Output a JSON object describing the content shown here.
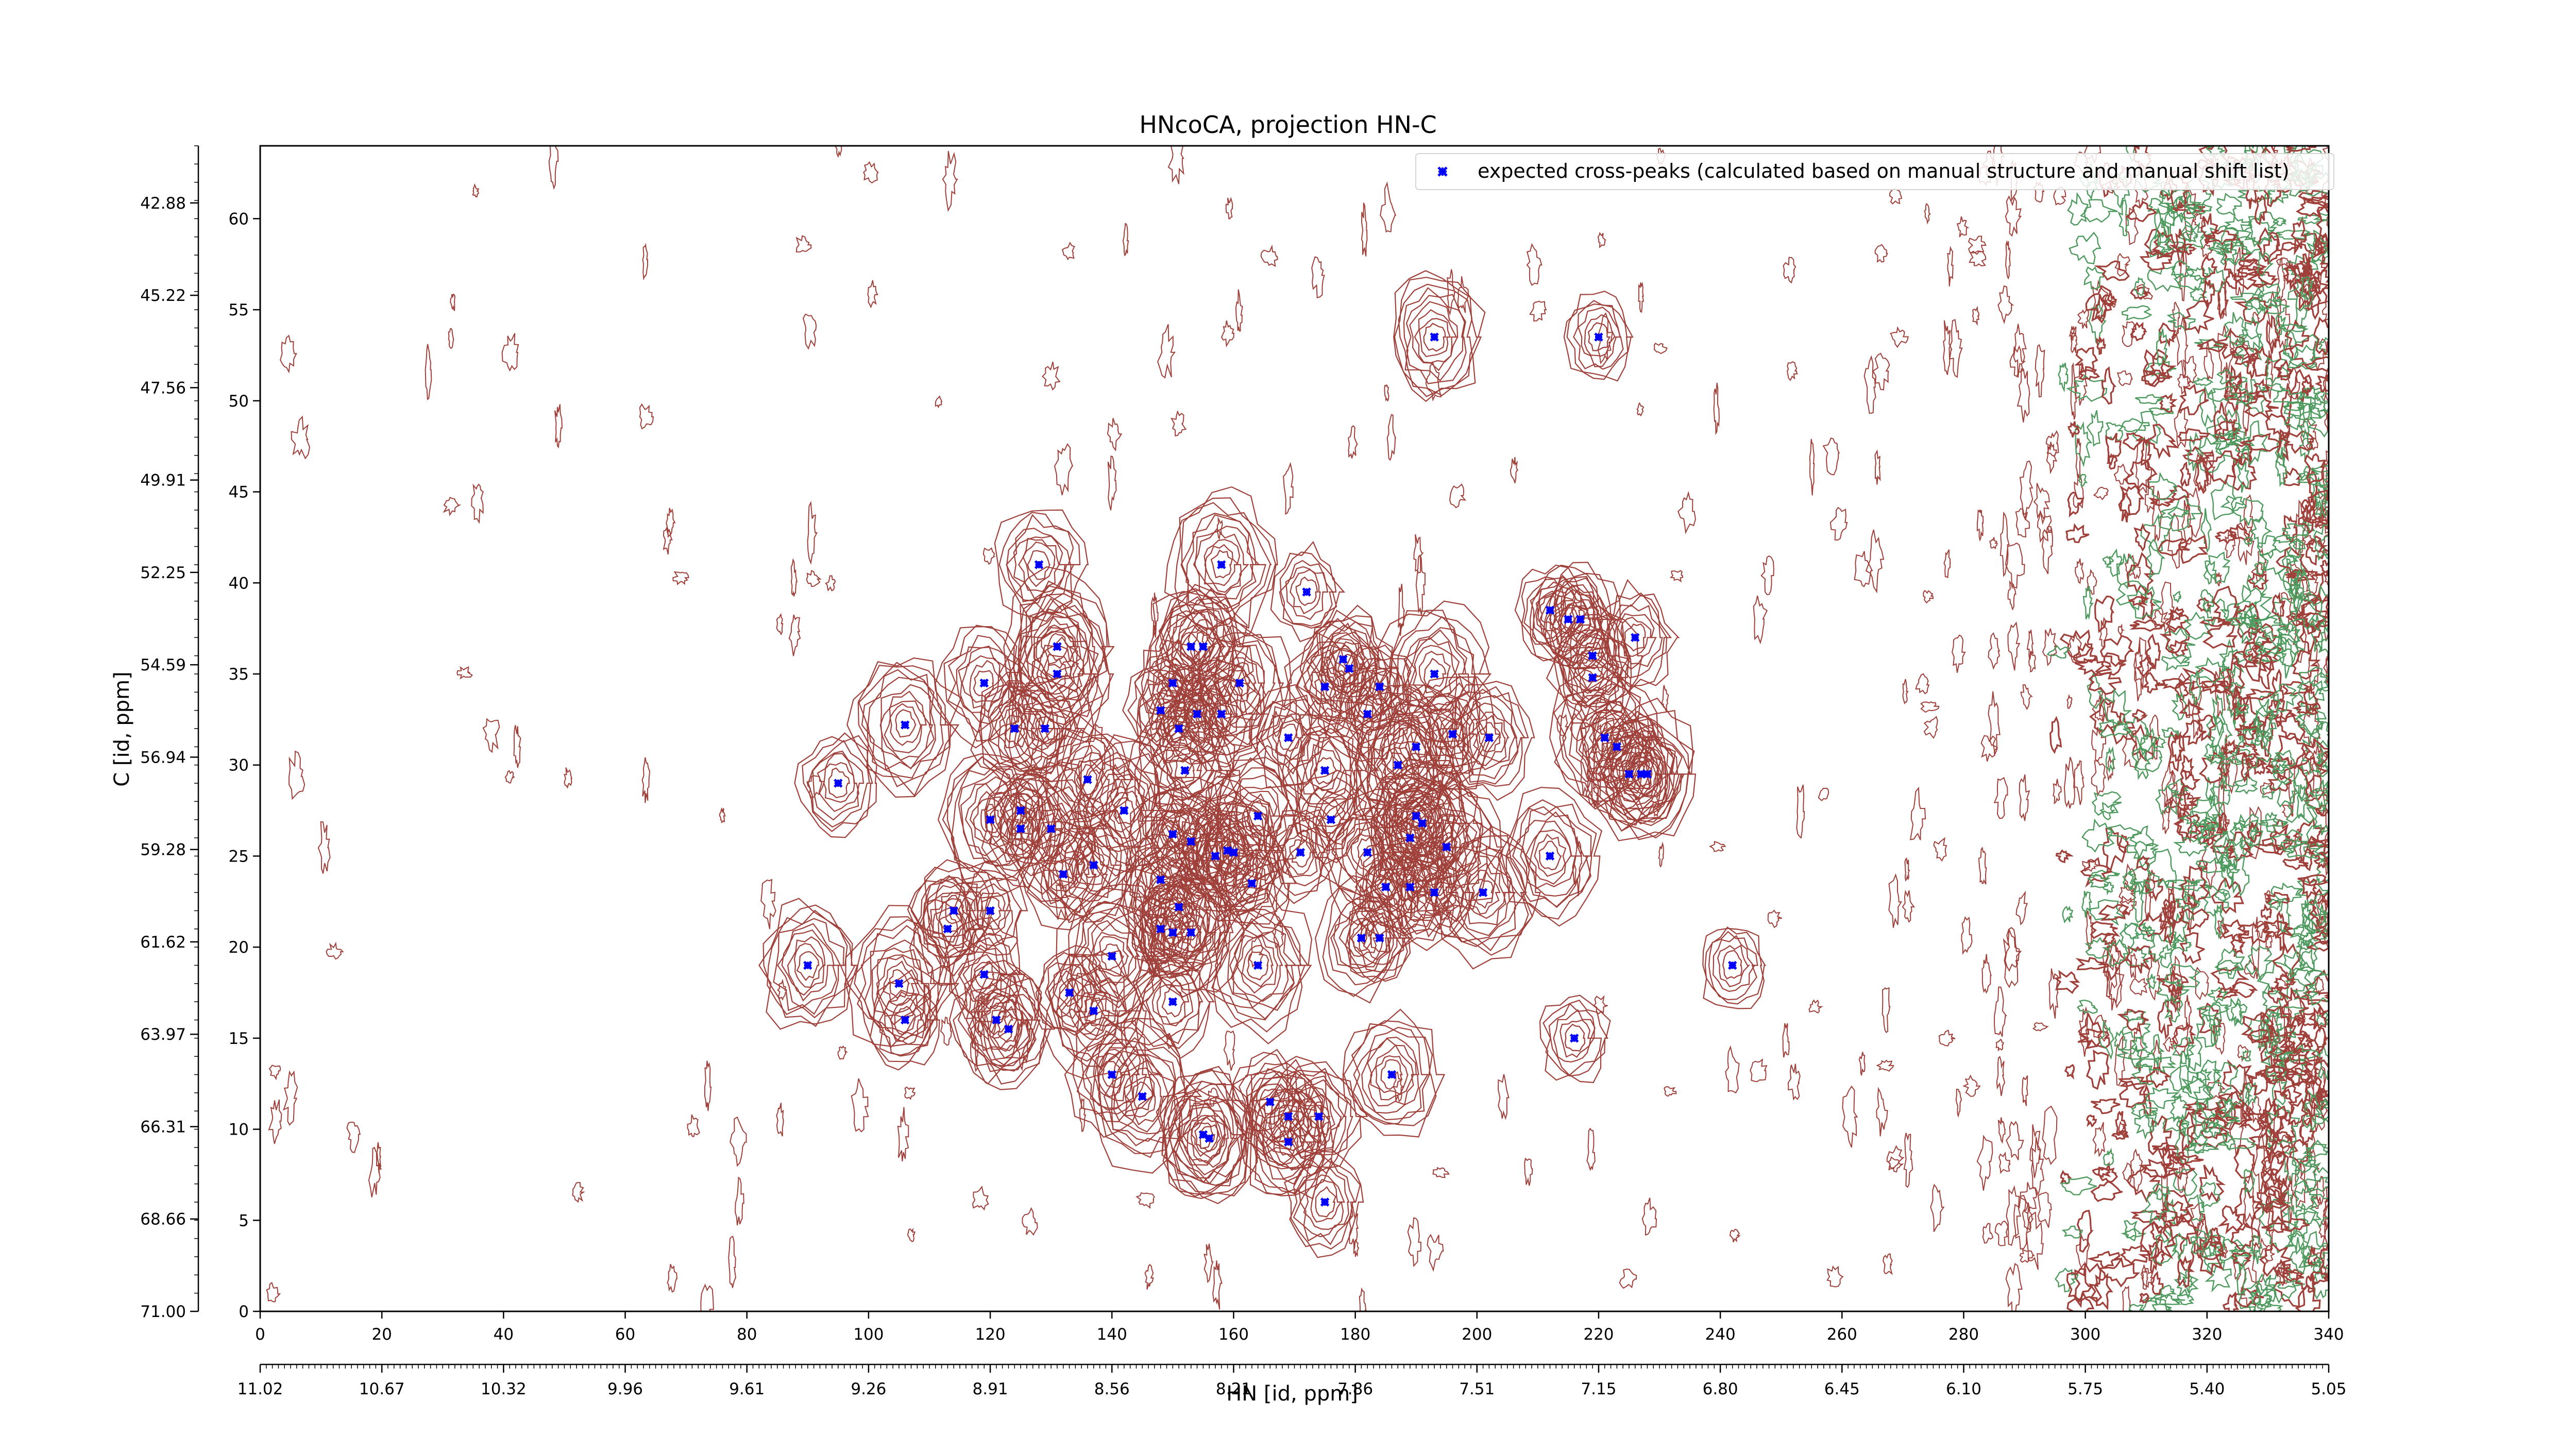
{
  "chart_data": {
    "type": "scatter",
    "title": "HNcoCA, projection HN-C",
    "xlabel": "HN [id, ppm]",
    "ylabel": "C [id, ppm]",
    "x_index_range": [
      0,
      340
    ],
    "y_index_range": [
      0,
      64
    ],
    "x_index_ticks": [
      "0",
      "20",
      "40",
      "60",
      "80",
      "100",
      "120",
      "140",
      "160",
      "180",
      "200",
      "220",
      "240",
      "260",
      "280",
      "300",
      "320",
      "340"
    ],
    "y_index_ticks": [
      "0",
      "5",
      "10",
      "15",
      "20",
      "25",
      "30",
      "35",
      "40",
      "45",
      "50",
      "55",
      "60"
    ],
    "x_ppm_ticks": [
      "11.02",
      "10.67",
      "10.32",
      "9.96",
      "9.61",
      "9.26",
      "8.91",
      "8.56",
      "8.21",
      "7.86",
      "7.51",
      "7.15",
      "6.80",
      "6.45",
      "6.10",
      "5.75",
      "5.40",
      "5.05"
    ],
    "y_ppm_ticks": [
      "71.00",
      "68.66",
      "66.31",
      "63.97",
      "61.62",
      "59.28",
      "56.94",
      "54.59",
      "52.25",
      "49.91",
      "47.56",
      "45.22",
      "42.88"
    ],
    "legend": {
      "label": "expected cross-peaks (calculated based on manual structure and manual shift list)",
      "position": "top-right"
    },
    "series": [
      {
        "name": "expected cross-peaks (calculated based on manual structure and manual shift list)",
        "marker": "x",
        "color": "#0000ff",
        "points": [
          [
            193,
            53.5
          ],
          [
            220,
            53.5
          ],
          [
            128,
            41
          ],
          [
            158,
            41
          ],
          [
            172,
            39.5
          ],
          [
            212,
            38.5
          ],
          [
            215,
            38
          ],
          [
            217,
            38
          ],
          [
            226,
            37
          ],
          [
            131,
            36.5
          ],
          [
            153,
            36.5
          ],
          [
            155,
            36.5
          ],
          [
            219,
            36
          ],
          [
            178,
            35.8
          ],
          [
            179,
            35.3
          ],
          [
            131,
            35
          ],
          [
            193,
            35
          ],
          [
            119,
            34.5
          ],
          [
            150,
            34.5
          ],
          [
            161,
            34.5
          ],
          [
            175,
            34.3
          ],
          [
            184,
            34.3
          ],
          [
            219,
            34.8
          ],
          [
            148,
            33
          ],
          [
            154,
            32.8
          ],
          [
            158,
            32.8
          ],
          [
            182,
            32.8
          ],
          [
            106,
            32.2
          ],
          [
            124,
            32
          ],
          [
            129,
            32
          ],
          [
            151,
            32
          ],
          [
            169,
            31.5
          ],
          [
            196,
            31.7
          ],
          [
            202,
            31.5
          ],
          [
            221,
            31.5
          ],
          [
            223,
            31
          ],
          [
            190,
            31
          ],
          [
            187,
            30
          ],
          [
            95,
            29
          ],
          [
            136,
            29.2
          ],
          [
            152,
            29.7
          ],
          [
            175,
            29.7
          ],
          [
            225,
            29.5
          ],
          [
            227,
            29.5
          ],
          [
            228,
            29.5
          ],
          [
            125,
            27.5
          ],
          [
            120,
            27
          ],
          [
            125,
            26.5
          ],
          [
            142,
            27.5
          ],
          [
            164,
            27.2
          ],
          [
            176,
            27
          ],
          [
            190,
            27.2
          ],
          [
            191,
            26.8
          ],
          [
            130,
            26.5
          ],
          [
            150,
            26.2
          ],
          [
            153,
            25.8
          ],
          [
            159,
            25.3
          ],
          [
            195,
            25.5
          ],
          [
            171,
            25.2
          ],
          [
            182,
            25.2
          ],
          [
            189,
            26
          ],
          [
            157,
            25
          ],
          [
            160,
            25.2
          ],
          [
            212,
            25
          ],
          [
            137,
            24.5
          ],
          [
            132,
            24
          ],
          [
            148,
            23.7
          ],
          [
            193,
            23
          ],
          [
            163,
            23.5
          ],
          [
            185,
            23.3
          ],
          [
            189,
            23.3
          ],
          [
            201,
            23
          ],
          [
            151,
            22.2
          ],
          [
            114,
            22
          ],
          [
            120,
            22
          ],
          [
            113,
            21
          ],
          [
            148,
            21
          ],
          [
            153,
            20.8
          ],
          [
            150,
            20.8
          ],
          [
            164,
            19
          ],
          [
            181,
            20.5
          ],
          [
            184,
            20.5
          ],
          [
            119,
            18.5
          ],
          [
            140,
            19.5
          ],
          [
            90,
            19
          ],
          [
            105,
            18
          ],
          [
            242,
            19
          ],
          [
            133,
            17.5
          ],
          [
            121,
            16
          ],
          [
            123,
            15.5
          ],
          [
            137,
            16.5
          ],
          [
            106,
            16
          ],
          [
            150,
            17
          ],
          [
            216,
            15
          ],
          [
            140,
            13
          ],
          [
            186,
            13
          ],
          [
            145,
            11.8
          ],
          [
            166,
            11.5
          ],
          [
            169,
            10.7
          ],
          [
            174,
            10.7
          ],
          [
            155,
            9.7
          ],
          [
            156,
            9.5
          ],
          [
            169,
            9.3
          ],
          [
            175,
            6
          ]
        ]
      }
    ],
    "contours": {
      "positive_color": "#a0403a",
      "negative_color": "#4e9a5e"
    }
  }
}
